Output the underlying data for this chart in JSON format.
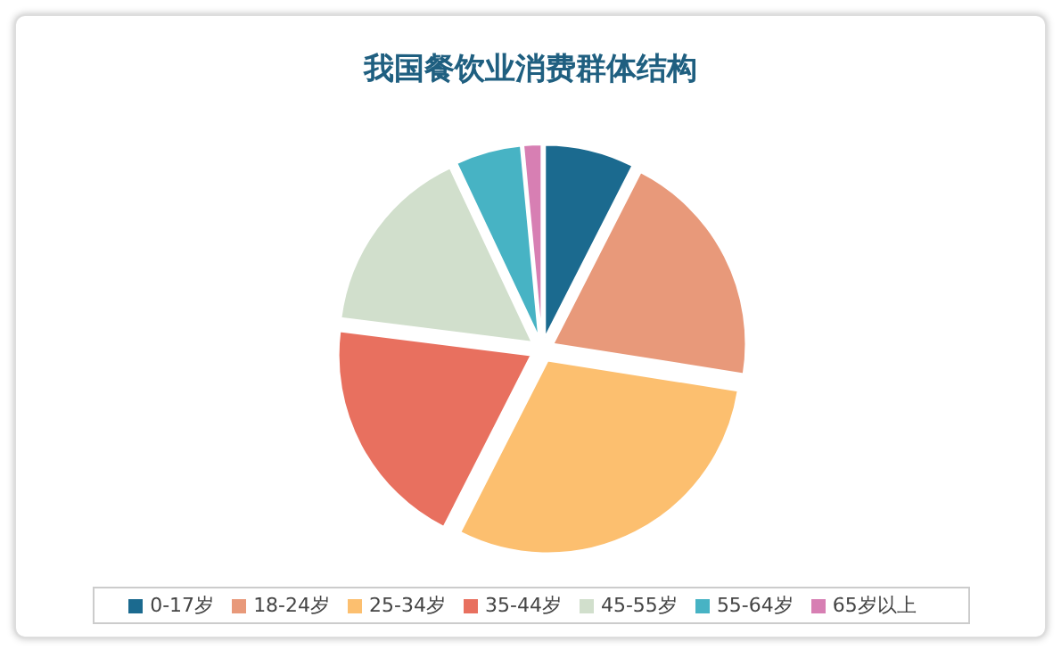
{
  "chart_data": {
    "type": "pie",
    "title": "我国餐饮业消费群体结构",
    "categories": [
      "0-17岁",
      "18-24岁",
      "25-34岁",
      "35-44岁",
      "45-55岁",
      "55-64岁",
      "65岁以上"
    ],
    "values": [
      7.5,
      20,
      30,
      19.5,
      16,
      5.5,
      1.5
    ],
    "colors": [
      "#1b6a8f",
      "#e8997a",
      "#fcbf6f",
      "#e8705f",
      "#d1dfcc",
      "#47b3c4",
      "#d77fb3"
    ],
    "legend": "bottom"
  }
}
